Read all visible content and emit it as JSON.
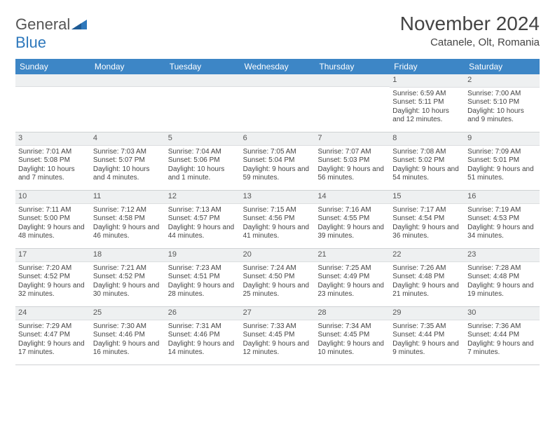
{
  "logo": {
    "text1": "General",
    "text2": "Blue"
  },
  "title": {
    "month": "November 2024",
    "location": "Catanele, Olt, Romania"
  },
  "weekdays": [
    "Sunday",
    "Monday",
    "Tuesday",
    "Wednesday",
    "Thursday",
    "Friday",
    "Saturday"
  ],
  "colors": {
    "header_bg": "#3d86c6",
    "header_text": "#ffffff",
    "daynum_bg": "#eef0f1",
    "border": "#cfd2d4",
    "text": "#444444",
    "logo_blue": "#2e78bc"
  },
  "rows": [
    [
      {
        "day": "",
        "sunrise": "",
        "sunset": "",
        "daylight": ""
      },
      {
        "day": "",
        "sunrise": "",
        "sunset": "",
        "daylight": ""
      },
      {
        "day": "",
        "sunrise": "",
        "sunset": "",
        "daylight": ""
      },
      {
        "day": "",
        "sunrise": "",
        "sunset": "",
        "daylight": ""
      },
      {
        "day": "",
        "sunrise": "",
        "sunset": "",
        "daylight": ""
      },
      {
        "day": "1",
        "sunrise": "Sunrise: 6:59 AM",
        "sunset": "Sunset: 5:11 PM",
        "daylight": "Daylight: 10 hours and 12 minutes."
      },
      {
        "day": "2",
        "sunrise": "Sunrise: 7:00 AM",
        "sunset": "Sunset: 5:10 PM",
        "daylight": "Daylight: 10 hours and 9 minutes."
      }
    ],
    [
      {
        "day": "3",
        "sunrise": "Sunrise: 7:01 AM",
        "sunset": "Sunset: 5:08 PM",
        "daylight": "Daylight: 10 hours and 7 minutes."
      },
      {
        "day": "4",
        "sunrise": "Sunrise: 7:03 AM",
        "sunset": "Sunset: 5:07 PM",
        "daylight": "Daylight: 10 hours and 4 minutes."
      },
      {
        "day": "5",
        "sunrise": "Sunrise: 7:04 AM",
        "sunset": "Sunset: 5:06 PM",
        "daylight": "Daylight: 10 hours and 1 minute."
      },
      {
        "day": "6",
        "sunrise": "Sunrise: 7:05 AM",
        "sunset": "Sunset: 5:04 PM",
        "daylight": "Daylight: 9 hours and 59 minutes."
      },
      {
        "day": "7",
        "sunrise": "Sunrise: 7:07 AM",
        "sunset": "Sunset: 5:03 PM",
        "daylight": "Daylight: 9 hours and 56 minutes."
      },
      {
        "day": "8",
        "sunrise": "Sunrise: 7:08 AM",
        "sunset": "Sunset: 5:02 PM",
        "daylight": "Daylight: 9 hours and 54 minutes."
      },
      {
        "day": "9",
        "sunrise": "Sunrise: 7:09 AM",
        "sunset": "Sunset: 5:01 PM",
        "daylight": "Daylight: 9 hours and 51 minutes."
      }
    ],
    [
      {
        "day": "10",
        "sunrise": "Sunrise: 7:11 AM",
        "sunset": "Sunset: 5:00 PM",
        "daylight": "Daylight: 9 hours and 48 minutes."
      },
      {
        "day": "11",
        "sunrise": "Sunrise: 7:12 AM",
        "sunset": "Sunset: 4:58 PM",
        "daylight": "Daylight: 9 hours and 46 minutes."
      },
      {
        "day": "12",
        "sunrise": "Sunrise: 7:13 AM",
        "sunset": "Sunset: 4:57 PM",
        "daylight": "Daylight: 9 hours and 44 minutes."
      },
      {
        "day": "13",
        "sunrise": "Sunrise: 7:15 AM",
        "sunset": "Sunset: 4:56 PM",
        "daylight": "Daylight: 9 hours and 41 minutes."
      },
      {
        "day": "14",
        "sunrise": "Sunrise: 7:16 AM",
        "sunset": "Sunset: 4:55 PM",
        "daylight": "Daylight: 9 hours and 39 minutes."
      },
      {
        "day": "15",
        "sunrise": "Sunrise: 7:17 AM",
        "sunset": "Sunset: 4:54 PM",
        "daylight": "Daylight: 9 hours and 36 minutes."
      },
      {
        "day": "16",
        "sunrise": "Sunrise: 7:19 AM",
        "sunset": "Sunset: 4:53 PM",
        "daylight": "Daylight: 9 hours and 34 minutes."
      }
    ],
    [
      {
        "day": "17",
        "sunrise": "Sunrise: 7:20 AM",
        "sunset": "Sunset: 4:52 PM",
        "daylight": "Daylight: 9 hours and 32 minutes."
      },
      {
        "day": "18",
        "sunrise": "Sunrise: 7:21 AM",
        "sunset": "Sunset: 4:52 PM",
        "daylight": "Daylight: 9 hours and 30 minutes."
      },
      {
        "day": "19",
        "sunrise": "Sunrise: 7:23 AM",
        "sunset": "Sunset: 4:51 PM",
        "daylight": "Daylight: 9 hours and 28 minutes."
      },
      {
        "day": "20",
        "sunrise": "Sunrise: 7:24 AM",
        "sunset": "Sunset: 4:50 PM",
        "daylight": "Daylight: 9 hours and 25 minutes."
      },
      {
        "day": "21",
        "sunrise": "Sunrise: 7:25 AM",
        "sunset": "Sunset: 4:49 PM",
        "daylight": "Daylight: 9 hours and 23 minutes."
      },
      {
        "day": "22",
        "sunrise": "Sunrise: 7:26 AM",
        "sunset": "Sunset: 4:48 PM",
        "daylight": "Daylight: 9 hours and 21 minutes."
      },
      {
        "day": "23",
        "sunrise": "Sunrise: 7:28 AM",
        "sunset": "Sunset: 4:48 PM",
        "daylight": "Daylight: 9 hours and 19 minutes."
      }
    ],
    [
      {
        "day": "24",
        "sunrise": "Sunrise: 7:29 AM",
        "sunset": "Sunset: 4:47 PM",
        "daylight": "Daylight: 9 hours and 17 minutes."
      },
      {
        "day": "25",
        "sunrise": "Sunrise: 7:30 AM",
        "sunset": "Sunset: 4:46 PM",
        "daylight": "Daylight: 9 hours and 16 minutes."
      },
      {
        "day": "26",
        "sunrise": "Sunrise: 7:31 AM",
        "sunset": "Sunset: 4:46 PM",
        "daylight": "Daylight: 9 hours and 14 minutes."
      },
      {
        "day": "27",
        "sunrise": "Sunrise: 7:33 AM",
        "sunset": "Sunset: 4:45 PM",
        "daylight": "Daylight: 9 hours and 12 minutes."
      },
      {
        "day": "28",
        "sunrise": "Sunrise: 7:34 AM",
        "sunset": "Sunset: 4:45 PM",
        "daylight": "Daylight: 9 hours and 10 minutes."
      },
      {
        "day": "29",
        "sunrise": "Sunrise: 7:35 AM",
        "sunset": "Sunset: 4:44 PM",
        "daylight": "Daylight: 9 hours and 9 minutes."
      },
      {
        "day": "30",
        "sunrise": "Sunrise: 7:36 AM",
        "sunset": "Sunset: 4:44 PM",
        "daylight": "Daylight: 9 hours and 7 minutes."
      }
    ]
  ]
}
